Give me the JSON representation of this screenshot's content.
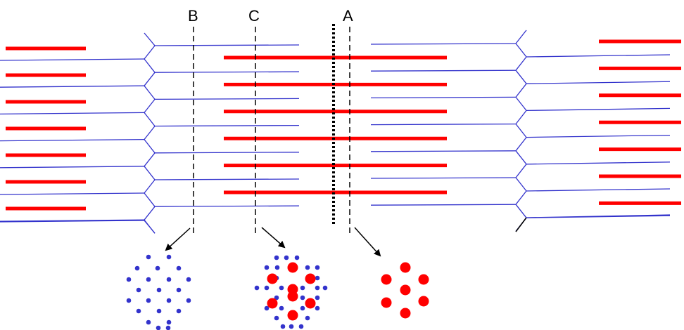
{
  "diagram": {
    "labels": {
      "section_a": "A",
      "section_b": "B",
      "section_c": "C"
    },
    "colors": {
      "thick_filament": "#ff0000",
      "thin_filament": "#3333cc",
      "z_line_bottom": "#000000",
      "cut_line": "#000000",
      "m_line": "#000000",
      "background": "#ffffff"
    },
    "components": {
      "thin_filament_color_name": "blue",
      "thick_filament_color_name": "red"
    }
  }
}
